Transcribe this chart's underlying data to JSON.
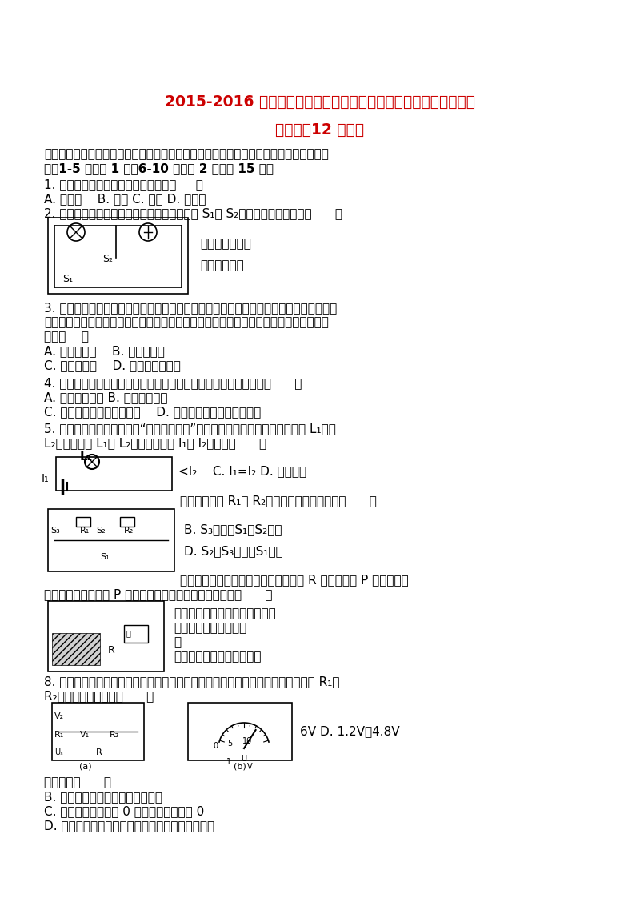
{
  "title1": "2015-2016 学年江苏省宿迁市沐阳县修远中学九年级（上）月考物",
  "title2": "理试卷（12 月份）",
  "section1": "一、选择题（以下各题只有一个答案符合题意，请将正确答案的序号填写在答题卡的表格",
  "section1b": "中，1-5 题每题 1 分，6-10 题每题 2 分，共 15 分）",
  "q1": "1. 以下各元件中，不属于用电器的是（     ）",
  "q1a": "A. 电风扇    B. 开关 C. 空调 D. 电视机",
  "q2": "2. 一种声光报警器的电路如图所示。闭合开关 S₁和 S₂后，会出现的现象是（      ）",
  "q2opt1": "灯不亮，鱾不响",
  "q2opt2": "灯不亮，鱾响",
  "q3": "3. 电吹风可以吹冷风也可以吹热风，当吹冷风时只有里面的电风扇在工作，在吹热风时，",
  "q3b": "电吹风里面的电热丝和电风扇同时工作．由此可知，吹风机里面的电热丝和电风扇的连接",
  "q3c": "方式（    ）",
  "q3a": "A. 一定是串联    B. 一定是并联",
  "q3b2": "C. 可能是串联    D. 以上说法都不对",
  "q4": "4. 当温度一定时，比较两根铝线的电阔的大小，下列说法正确的是（      ）",
  "q4a": "A. 长导线电阔大 B. 细导线电阔大",
  "q4b": "C. 长度相同，粗导线电阔大    D. 粗细相同，长导线的电阔大",
  "q5": "5. 如图所示，一位同学在做“组成串联电路”的实验中，正确接线后，观察到灯 L₁比灯",
  "q5b": "L₂亮，若通过 L₁和 L₂的电流分别为 I₁和 I₂，则：（      ）",
  "q5opt": "<I₂    C. I₁=I₂ D. 无法确定",
  "q6mid": "中，要使电阔 R₁和 R₂组成并联电路，则应将（      ）",
  "q6optB": "B. S₃闭合，S₁、S₂断开",
  "q6optD": "D. S₂、S₃闭合，S₁断开",
  "q7intro": "油笱内油面高度的装置。弯月形的电阔 R 与金属滑片 P 构成一个滑",
  "q7b": "动变阔器。金属滑片 P 是杠杆的一端。下列说法正确的是（      ）",
  "q7opt1": "电流表改装，也可用电压表改装",
  "q7opt2": "接入电路中的电阔减小",
  "q7opt3": "均",
  "q7opt4": "量表指示油面的高度值越大",
  "q8intro": "8. 正如图所示小电路中，闭合开关后，两个电压表指针偏转均为如图所示，则电阔 R₁和",
  "q8b": "R₂两端的电压分别为（      ）",
  "q8opt": "6V D. 1.2V，4.8V",
  "q9intro": "正确的是（      ）",
  "q9optB": "B. 导体的电压跨过它的电流成反比",
  "q9optC": "C. 当导体两端电压为 0 时，导体的电阔为 0",
  "q9optD": "D. 导体的电阔跨它两端的电压和通过它的电流无关",
  "bg_color": "#ffffff",
  "title_color": "#cc0000",
  "text_color": "#000000"
}
